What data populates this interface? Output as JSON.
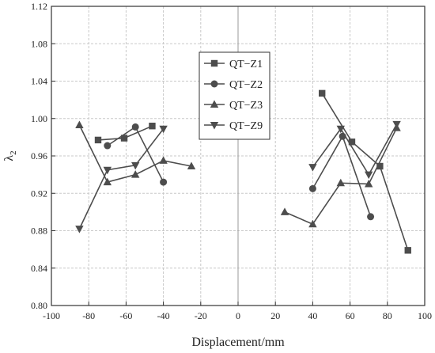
{
  "chart_data": {
    "type": "line",
    "xlabel": "Displacement/mm",
    "ylabel_main": "λ",
    "ylabel_sub": "2",
    "xlim": [
      -100,
      100
    ],
    "ylim": [
      0.8,
      1.12
    ],
    "xticks": [
      -100,
      -80,
      -60,
      -40,
      -20,
      0,
      20,
      40,
      60,
      80,
      100
    ],
    "yticks": [
      0.8,
      0.84,
      0.88,
      0.92,
      0.96,
      1.0,
      1.04,
      1.08,
      1.12
    ],
    "grid": true,
    "legend_position": "top-center",
    "line_color": "#4d4d4d",
    "series": [
      {
        "name": "QT−Z1",
        "marker": "square",
        "segments": [
          [
            [
              -75,
              0.977
            ],
            [
              -61,
              0.979
            ],
            [
              -46,
              0.992
            ]
          ],
          [
            [
              45,
              1.027
            ],
            [
              61,
              0.975
            ],
            [
              76,
              0.949
            ],
            [
              91,
              0.859
            ]
          ]
        ]
      },
      {
        "name": "QT−Z2",
        "marker": "circle",
        "segments": [
          [
            [
              -70,
              0.971
            ],
            [
              -55,
              0.991
            ],
            [
              -40,
              0.932
            ]
          ],
          [
            [
              40,
              0.925
            ],
            [
              56,
              0.981
            ],
            [
              71,
              0.895
            ]
          ]
        ]
      },
      {
        "name": "QT−Z3",
        "marker": "triangle-up",
        "segments": [
          [
            [
              -85,
              0.993
            ],
            [
              -70,
              0.932
            ],
            [
              -55,
              0.94
            ],
            [
              -40,
              0.955
            ],
            [
              -25,
              0.949
            ]
          ],
          [
            [
              25,
              0.9
            ],
            [
              40,
              0.887
            ],
            [
              55,
              0.931
            ],
            [
              70,
              0.93
            ],
            [
              85,
              0.99
            ]
          ]
        ]
      },
      {
        "name": "QT−Z9",
        "marker": "triangle-down",
        "segments": [
          [
            [
              -85,
              0.882
            ],
            [
              -70,
              0.945
            ],
            [
              -55,
              0.95
            ],
            [
              -40,
              0.989
            ]
          ],
          [
            [
              40,
              0.948
            ],
            [
              55,
              0.989
            ],
            [
              70,
              0.94
            ],
            [
              85,
              0.994
            ]
          ]
        ]
      }
    ]
  }
}
